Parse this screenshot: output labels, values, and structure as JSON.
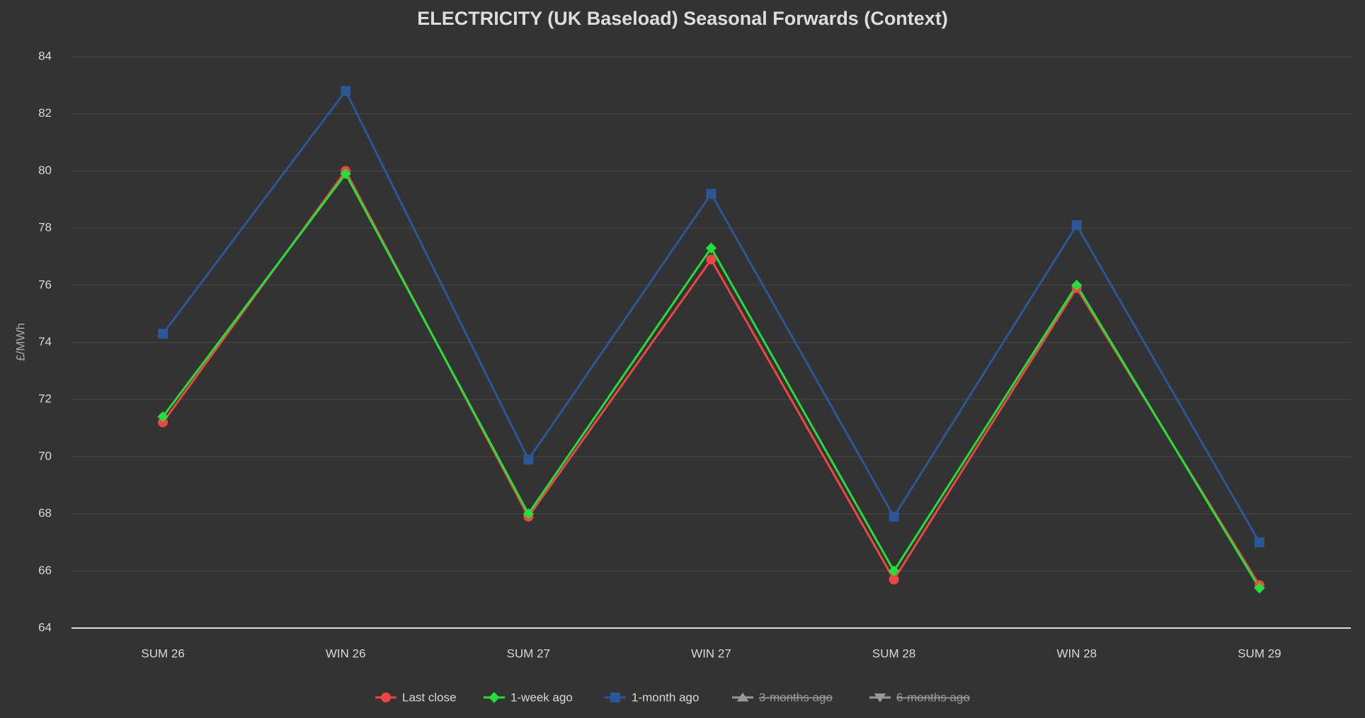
{
  "chart_data": {
    "type": "line",
    "title": "ELECTRICITY (UK Baseload) Seasonal Forwards (Context)",
    "y_label": "£/MWh",
    "categories": [
      "SUM 26",
      "WIN 26",
      "SUM 27",
      "WIN 27",
      "SUM 28",
      "WIN 28",
      "SUM 29"
    ],
    "series": [
      {
        "name": "Last close",
        "color": "#ef4444",
        "marker": "circle",
        "values": [
          71.2,
          80.0,
          67.9,
          76.9,
          65.7,
          75.9,
          65.5
        ]
      },
      {
        "name": "1-week ago",
        "color": "#22e03a",
        "marker": "diamond",
        "values": [
          71.4,
          79.9,
          68.0,
          77.3,
          66.0,
          76.0,
          65.4
        ]
      },
      {
        "name": "1-month ago",
        "color": "#2b5797",
        "marker": "square",
        "values": [
          74.3,
          82.8,
          69.9,
          79.2,
          67.9,
          78.1,
          67.0
        ]
      },
      {
        "name": "3-months ago",
        "color": "#999999",
        "marker": "triangle",
        "hidden": true,
        "values": [
          null,
          null,
          null,
          null,
          null,
          null,
          null
        ]
      },
      {
        "name": "6-months ago",
        "color": "#999999",
        "marker": "triangle-down",
        "hidden": true,
        "values": [
          null,
          null,
          null,
          null,
          null,
          null,
          null
        ]
      }
    ],
    "ylim": [
      64,
      84
    ],
    "yticks": [
      64,
      66,
      68,
      70,
      72,
      74,
      76,
      78,
      80,
      82,
      84
    ],
    "grid": true,
    "legend": "bottom"
  }
}
